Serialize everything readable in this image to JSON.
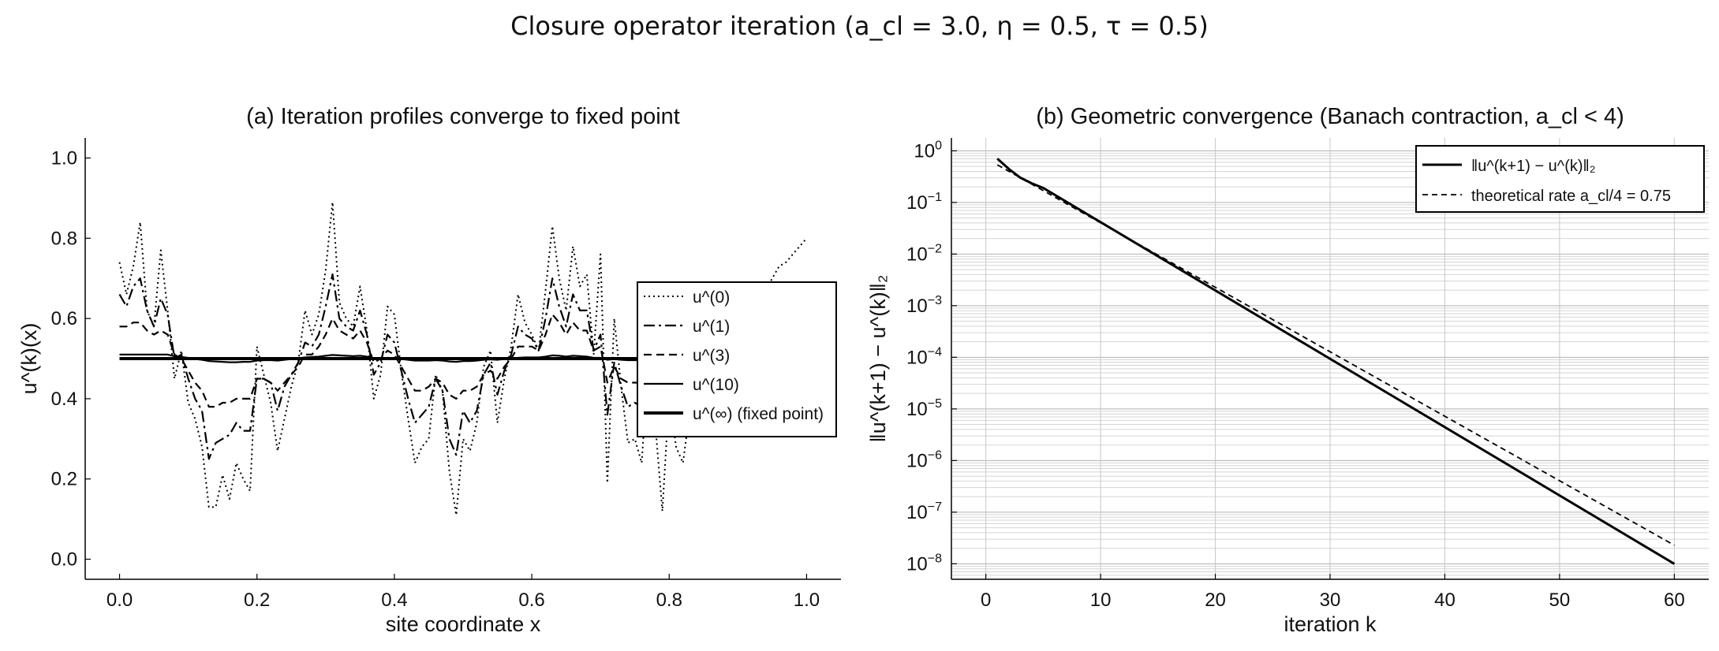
{
  "figure": {
    "title": "Closure operator iteration  (a_cl = 3.0,  η = 0.5,  τ = 0.5)"
  },
  "chart_data": [
    {
      "panel": "a",
      "type": "line",
      "title": "(a)  Iteration profiles converge to fixed point",
      "xlabel": "site coordinate x",
      "ylabel": "u^(k)(x)",
      "xlim": [
        -0.05,
        1.05
      ],
      "ylim": [
        -0.05,
        1.05
      ],
      "xticks": [
        "0.0",
        "0.2",
        "0.4",
        "0.6",
        "0.8",
        "1.0"
      ],
      "yticks": [
        "0.0",
        "0.2",
        "0.4",
        "0.6",
        "0.8",
        "1.0"
      ],
      "grid": false,
      "legend_position": "right",
      "x": [
        0.0,
        0.01,
        0.02,
        0.03,
        0.04,
        0.05,
        0.06,
        0.07,
        0.08,
        0.09,
        0.1,
        0.11,
        0.12,
        0.13,
        0.14,
        0.15,
        0.16,
        0.17,
        0.18,
        0.19,
        0.2,
        0.21,
        0.22,
        0.23,
        0.24,
        0.25,
        0.26,
        0.27,
        0.28,
        0.29,
        0.3,
        0.31,
        0.32,
        0.33,
        0.34,
        0.35,
        0.36,
        0.37,
        0.38,
        0.39,
        0.4,
        0.41,
        0.42,
        0.43,
        0.44,
        0.45,
        0.46,
        0.47,
        0.48,
        0.49,
        0.5,
        0.51,
        0.52,
        0.53,
        0.54,
        0.55,
        0.56,
        0.57,
        0.58,
        0.59,
        0.6,
        0.61,
        0.62,
        0.63,
        0.64,
        0.65,
        0.66,
        0.67,
        0.68,
        0.69,
        0.7,
        0.71,
        0.72,
        0.73,
        0.74,
        0.75,
        0.76,
        0.77,
        0.78,
        0.79,
        0.8,
        0.81,
        0.82,
        0.83,
        0.84,
        0.85,
        0.86,
        0.87,
        0.88,
        0.89,
        0.9,
        0.91,
        0.92,
        0.93,
        0.94,
        0.95,
        0.96,
        0.97,
        0.98,
        0.99,
        1.0
      ],
      "series": [
        {
          "name": "u^(0)",
          "style": "dotted",
          "width": 2,
          "values": [
            0.74,
            0.66,
            0.73,
            0.84,
            0.62,
            0.58,
            0.77,
            0.62,
            0.45,
            0.52,
            0.39,
            0.35,
            0.28,
            0.13,
            0.13,
            0.21,
            0.15,
            0.24,
            0.2,
            0.17,
            0.53,
            0.46,
            0.39,
            0.27,
            0.35,
            0.43,
            0.49,
            0.62,
            0.56,
            0.61,
            0.72,
            0.89,
            0.64,
            0.6,
            0.58,
            0.68,
            0.57,
            0.4,
            0.46,
            0.63,
            0.61,
            0.47,
            0.35,
            0.24,
            0.28,
            0.3,
            0.46,
            0.42,
            0.22,
            0.11,
            0.3,
            0.27,
            0.34,
            0.48,
            0.52,
            0.34,
            0.45,
            0.53,
            0.66,
            0.59,
            0.56,
            0.52,
            0.67,
            0.83,
            0.7,
            0.62,
            0.78,
            0.68,
            0.71,
            0.51,
            0.76,
            0.19,
            0.6,
            0.43,
            0.29,
            0.3,
            0.24,
            0.5,
            0.33,
            0.12,
            0.41,
            0.28,
            0.24,
            0.37,
            0.41,
            0.45,
            0.46,
            0.5,
            0.52,
            0.55,
            0.58,
            0.6,
            0.63,
            0.64,
            0.67,
            0.7,
            0.73,
            0.74,
            0.76,
            0.78,
            0.8
          ]
        },
        {
          "name": "u^(1)",
          "style": "dashdot",
          "width": 2.2,
          "values": [
            0.66,
            0.63,
            0.68,
            0.7,
            0.62,
            0.58,
            0.65,
            0.61,
            0.5,
            0.51,
            0.45,
            0.4,
            0.37,
            0.25,
            0.29,
            0.3,
            0.31,
            0.34,
            0.32,
            0.32,
            0.45,
            0.45,
            0.44,
            0.37,
            0.43,
            0.46,
            0.49,
            0.54,
            0.53,
            0.56,
            0.63,
            0.71,
            0.6,
            0.58,
            0.57,
            0.62,
            0.56,
            0.46,
            0.49,
            0.56,
            0.54,
            0.47,
            0.4,
            0.34,
            0.36,
            0.38,
            0.45,
            0.42,
            0.3,
            0.26,
            0.37,
            0.34,
            0.37,
            0.46,
            0.49,
            0.41,
            0.47,
            0.51,
            0.58,
            0.56,
            0.55,
            0.52,
            0.6,
            0.7,
            0.63,
            0.58,
            0.66,
            0.62,
            0.62,
            0.52,
            0.56,
            0.36,
            0.49,
            0.43,
            0.38,
            0.39,
            0.38,
            0.47,
            0.42,
            0.36,
            0.45,
            0.42,
            0.4,
            0.45,
            0.47,
            0.48,
            0.49,
            0.5,
            0.51,
            0.52,
            0.53,
            0.54,
            0.55,
            0.56,
            0.57,
            0.58,
            0.59,
            0.6,
            0.61,
            0.62,
            0.63
          ]
        },
        {
          "name": "u^(3)",
          "style": "dashed",
          "width": 2.2,
          "values": [
            0.58,
            0.58,
            0.59,
            0.59,
            0.57,
            0.56,
            0.57,
            0.56,
            0.51,
            0.5,
            0.47,
            0.44,
            0.42,
            0.38,
            0.38,
            0.39,
            0.39,
            0.4,
            0.4,
            0.4,
            0.45,
            0.45,
            0.44,
            0.42,
            0.44,
            0.46,
            0.48,
            0.51,
            0.51,
            0.53,
            0.56,
            0.6,
            0.57,
            0.56,
            0.55,
            0.57,
            0.54,
            0.49,
            0.5,
            0.52,
            0.51,
            0.48,
            0.45,
            0.42,
            0.42,
            0.43,
            0.45,
            0.44,
            0.41,
            0.4,
            0.42,
            0.42,
            0.43,
            0.46,
            0.47,
            0.45,
            0.48,
            0.5,
            0.53,
            0.53,
            0.53,
            0.52,
            0.56,
            0.61,
            0.59,
            0.56,
            0.59,
            0.57,
            0.57,
            0.52,
            0.53,
            0.44,
            0.48,
            0.45,
            0.44,
            0.44,
            0.44,
            0.47,
            0.46,
            0.44,
            0.47,
            0.46,
            0.46,
            0.47,
            0.48,
            0.48,
            0.49,
            0.49,
            0.5,
            0.5,
            0.5,
            0.51,
            0.51,
            0.51,
            0.52,
            0.52,
            0.52,
            0.53,
            0.53,
            0.53,
            0.54
          ]
        },
        {
          "name": "u^(10)",
          "style": "solid",
          "width": 2.2,
          "values": [
            0.51,
            0.51,
            0.51,
            0.51,
            0.51,
            0.51,
            0.51,
            0.51,
            0.506,
            0.504,
            0.502,
            0.499,
            0.497,
            0.494,
            0.493,
            0.492,
            0.491,
            0.491,
            0.492,
            0.492,
            0.495,
            0.496,
            0.496,
            0.495,
            0.497,
            0.499,
            0.501,
            0.503,
            0.504,
            0.505,
            0.507,
            0.509,
            0.508,
            0.507,
            0.506,
            0.507,
            0.505,
            0.501,
            0.501,
            0.502,
            0.501,
            0.499,
            0.497,
            0.495,
            0.495,
            0.495,
            0.496,
            0.495,
            0.493,
            0.492,
            0.494,
            0.494,
            0.495,
            0.497,
            0.498,
            0.497,
            0.499,
            0.5,
            0.502,
            0.503,
            0.503,
            0.503,
            0.505,
            0.508,
            0.507,
            0.505,
            0.507,
            0.506,
            0.505,
            0.502,
            0.502,
            0.497,
            0.499,
            0.497,
            0.496,
            0.496,
            0.496,
            0.498,
            0.497,
            0.496,
            0.498,
            0.497,
            0.497,
            0.498,
            0.498,
            0.499,
            0.499,
            0.499,
            0.5,
            0.5,
            0.5,
            0.5,
            0.501,
            0.501,
            0.501,
            0.501,
            0.501,
            0.502,
            0.502,
            0.502,
            0.502
          ]
        },
        {
          "name": "u^(∞)  (fixed point)",
          "style": "solid",
          "width": 4,
          "constant": 0.5
        }
      ]
    },
    {
      "panel": "b",
      "type": "line",
      "title": "(b)  Geometric convergence  (Banach contraction, a_cl < 4)",
      "xlabel": "iteration  k",
      "ylabel": "‖u^(k+1) − u^(k)‖₂",
      "xlim": [
        -3,
        63
      ],
      "yscale": "log",
      "ylim_log10": [
        -8.3,
        0.25
      ],
      "xticks": [
        "0",
        "10",
        "20",
        "30",
        "40",
        "50",
        "60"
      ],
      "yticks": [
        "10^0",
        "10^-1",
        "10^-2",
        "10^-3",
        "10^-4",
        "10^-5",
        "10^-6",
        "10^-7",
        "10^-8"
      ],
      "grid": true,
      "legend_position": "top-right",
      "series": [
        {
          "name": "‖u^(k+1) − u^(k)‖₂",
          "style": "solid",
          "width": 3,
          "x": [
            1,
            2,
            3,
            4,
            5,
            60
          ],
          "log10_y": [
            -0.15,
            -0.35,
            -0.52,
            -0.63,
            -0.72,
            -8.0
          ]
        },
        {
          "name": "theoretical rate  a_cl/4 = 0.75",
          "style": "dashed",
          "width": 1.8,
          "x": [
            1,
            60
          ],
          "log10_y": [
            -0.27,
            -7.64
          ]
        }
      ]
    }
  ]
}
